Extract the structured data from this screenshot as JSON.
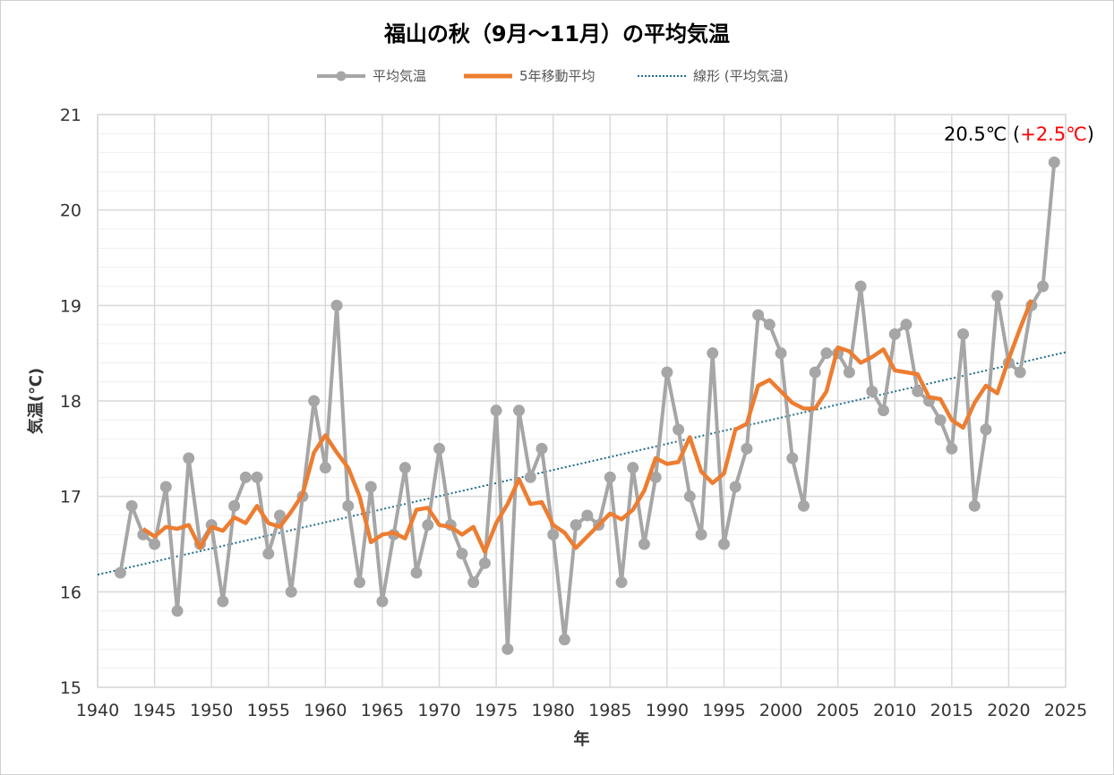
{
  "title": "福山の秋（9月～11月）の平均気温",
  "legend": {
    "series1": "平均気温",
    "series2": "5年移動平均",
    "series3": "線形 (平均気温)"
  },
  "annotation": {
    "value": "20.5℃",
    "diff_open": " (",
    "diff": "+2.5℃",
    "diff_close": ")"
  },
  "colors": {
    "temp": "#a6a6a6",
    "moving_avg": "#ed7d31",
    "trend": "#1f6f8b",
    "grid_major": "#d9d9d9",
    "grid_minor": "#efefef",
    "annotation_diff": "#ff0000"
  },
  "chart_data": {
    "type": "line",
    "title": "福山の秋（9月～11月）の平均気温",
    "xlabel": "年",
    "ylabel": "気温(℃)",
    "xlim": [
      1940,
      2025
    ],
    "ylim": [
      15,
      21
    ],
    "xticks": [
      "1940",
      "1945",
      "1950",
      "1955",
      "1960",
      "1965",
      "1970",
      "1975",
      "1980",
      "1985",
      "1990",
      "1995",
      "2000",
      "2005",
      "2010",
      "2015",
      "2020",
      "2025"
    ],
    "yticks": [
      "15",
      "16",
      "17",
      "18",
      "19",
      "20",
      "21"
    ],
    "grid": true,
    "legend_position": "top",
    "series": [
      {
        "name": "平均気温",
        "x": [
          1942,
          1943,
          1944,
          1945,
          1946,
          1947,
          1948,
          1949,
          1950,
          1951,
          1952,
          1953,
          1954,
          1955,
          1956,
          1957,
          1958,
          1959,
          1960,
          1961,
          1962,
          1963,
          1964,
          1965,
          1966,
          1967,
          1968,
          1969,
          1970,
          1971,
          1972,
          1973,
          1974,
          1975,
          1976,
          1977,
          1978,
          1979,
          1980,
          1981,
          1982,
          1983,
          1984,
          1985,
          1986,
          1987,
          1988,
          1989,
          1990,
          1991,
          1992,
          1993,
          1994,
          1995,
          1996,
          1997,
          1998,
          1999,
          2000,
          2001,
          2002,
          2003,
          2004,
          2005,
          2006,
          2007,
          2008,
          2009,
          2010,
          2011,
          2012,
          2013,
          2014,
          2015,
          2016,
          2017,
          2018,
          2019,
          2020,
          2021,
          2022,
          2023,
          2024
        ],
        "values": [
          16.2,
          16.9,
          16.6,
          16.5,
          17.1,
          15.8,
          17.4,
          16.5,
          16.7,
          15.9,
          16.9,
          17.2,
          17.2,
          16.4,
          16.8,
          16.0,
          17.0,
          18.0,
          17.3,
          19.0,
          16.9,
          16.1,
          17.1,
          15.9,
          16.6,
          17.3,
          16.2,
          16.7,
          17.5,
          16.7,
          16.4,
          16.1,
          16.3,
          17.9,
          15.4,
          17.9,
          17.2,
          17.5,
          16.6,
          15.5,
          16.7,
          16.8,
          16.7,
          17.2,
          16.1,
          17.3,
          16.5,
          17.2,
          18.3,
          17.7,
          17.0,
          16.6,
          18.5,
          16.5,
          17.1,
          17.5,
          18.9,
          18.8,
          18.5,
          17.4,
          16.9,
          18.3,
          18.5,
          18.5,
          18.3,
          19.2,
          18.1,
          17.9,
          18.7,
          18.8,
          18.1,
          18.0,
          17.8,
          17.5,
          18.7,
          16.9,
          17.7,
          19.1,
          18.4,
          18.3,
          19.0,
          19.2,
          20.5
        ]
      },
      {
        "name": "5年移動平均",
        "x": [
          1944,
          1945,
          1946,
          1947,
          1948,
          1949,
          1950,
          1951,
          1952,
          1953,
          1954,
          1955,
          1956,
          1957,
          1958,
          1959,
          1960,
          1961,
          1962,
          1963,
          1964,
          1965,
          1966,
          1967,
          1968,
          1969,
          1970,
          1971,
          1972,
          1973,
          1974,
          1975,
          1976,
          1977,
          1978,
          1979,
          1980,
          1981,
          1982,
          1983,
          1984,
          1985,
          1986,
          1987,
          1988,
          1989,
          1990,
          1991,
          1992,
          1993,
          1994,
          1995,
          1996,
          1997,
          1998,
          1999,
          2000,
          2001,
          2002,
          2003,
          2004,
          2005,
          2006,
          2007,
          2008,
          2009,
          2010,
          2011,
          2012,
          2013,
          2014,
          2015,
          2016,
          2017,
          2018,
          2019,
          2020,
          2021,
          2022
        ],
        "values": [
          16.66,
          16.58,
          16.68,
          16.66,
          16.7,
          16.46,
          16.68,
          16.64,
          16.78,
          16.72,
          16.9,
          16.72,
          16.68,
          16.84,
          17.02,
          17.46,
          17.64,
          17.46,
          17.3,
          17.0,
          16.52,
          16.6,
          16.62,
          16.56,
          16.86,
          16.88,
          16.7,
          16.68,
          16.6,
          16.68,
          16.42,
          16.72,
          16.92,
          17.18,
          16.92,
          16.94,
          16.7,
          16.62,
          16.46,
          16.58,
          16.7,
          16.82,
          16.76,
          16.86,
          17.06,
          17.4,
          17.34,
          17.36,
          17.62,
          17.26,
          17.14,
          17.24,
          17.7,
          17.76,
          18.16,
          18.22,
          18.1,
          17.98,
          17.92,
          17.92,
          18.1,
          18.56,
          18.52,
          18.4,
          18.46,
          18.54,
          18.32,
          18.3,
          18.28,
          18.04,
          18.02,
          17.8,
          17.72,
          17.98,
          18.16,
          18.08,
          18.44,
          18.76,
          19.06
        ]
      },
      {
        "name": "線形 (平均気温)",
        "x": [
          1940,
          2025
        ],
        "values": [
          16.18,
          18.51
        ]
      }
    ]
  }
}
